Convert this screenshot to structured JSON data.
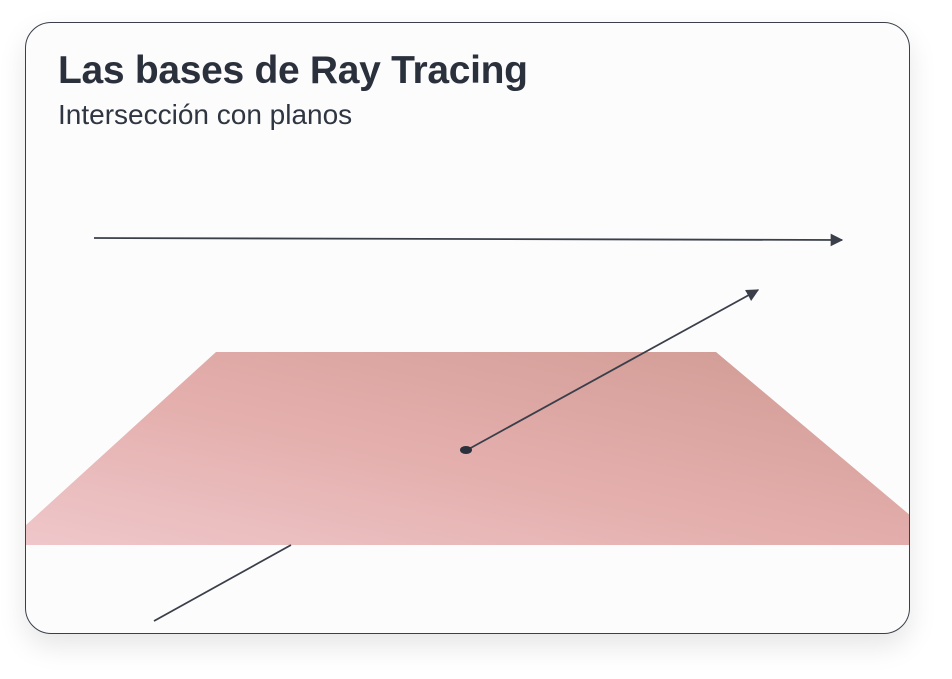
{
  "header": {
    "title": "Las bases de Ray Tracing",
    "subtitle": "Intersección con planos"
  },
  "scene": {
    "plane_gradient": [
      "#ecc4c7",
      "#e7b5b3",
      "#d99e98"
    ],
    "ray_color": "#3a3f4a",
    "rays": [
      {
        "name": "parallel-ray",
        "description_visible": false
      },
      {
        "name": "reflected-ray",
        "description_visible": false
      },
      {
        "name": "incident-ray",
        "description_visible": false
      }
    ]
  }
}
